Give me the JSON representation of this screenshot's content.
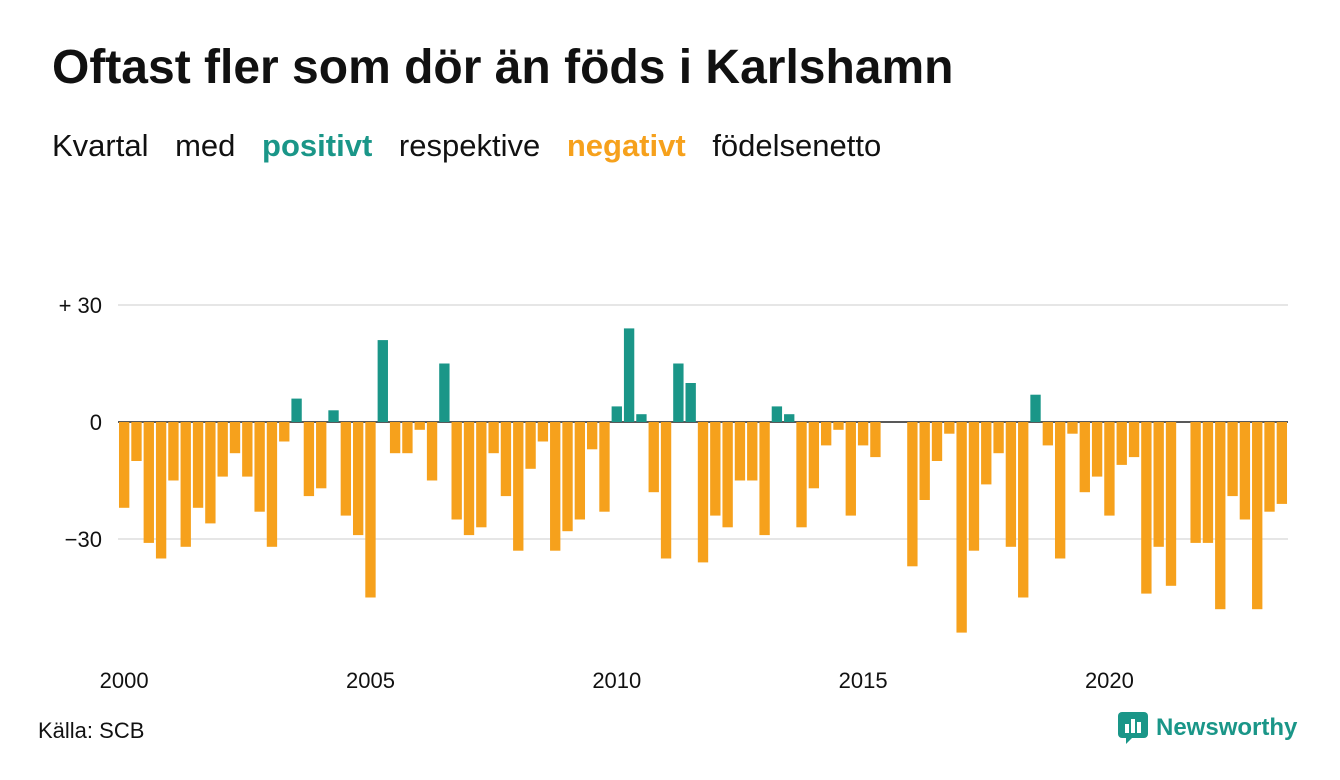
{
  "title": "Oftast fler som dör än föds i Karlshamn",
  "subtitle": {
    "part1": "Kvartal",
    "part2": "med",
    "positive": "positivt",
    "part3": "respektive",
    "negative": "negativt",
    "part4": "födelsenetto"
  },
  "colors": {
    "positive": "#1a9688",
    "negative": "#f6a11c",
    "text": "#111111",
    "grid": "#dddddd"
  },
  "source": "Källa: SCB",
  "brand": {
    "name": "Newsworthy",
    "icon": "newsworthy-logo-icon"
  },
  "chart_data": {
    "type": "bar",
    "xlabel": "",
    "ylabel": "",
    "ylim": [
      -56,
      30
    ],
    "yticks": [
      30,
      0,
      -30
    ],
    "ytick_labels": [
      "+ 30",
      "0",
      "−30"
    ],
    "xtick_labels": [
      "2000",
      "2005",
      "2010",
      "2015",
      "2020"
    ],
    "x_start": "2000 Q1",
    "frequency": "quarter",
    "grid": true,
    "values": [
      -22,
      -10,
      -31,
      -35,
      -15,
      -32,
      -22,
      -26,
      -14,
      -8,
      -14,
      -23,
      -32,
      -5,
      6,
      -19,
      -17,
      3,
      -24,
      -29,
      -45,
      21,
      -8,
      -8,
      -2,
      -15,
      15,
      -25,
      -29,
      -27,
      -8,
      -19,
      -33,
      -12,
      -5,
      -33,
      -28,
      -25,
      -7,
      -23,
      4,
      24,
      2,
      -18,
      -35,
      15,
      10,
      -36,
      -24,
      -27,
      -15,
      -15,
      -29,
      4,
      2,
      -27,
      -17,
      -6,
      -2,
      -24,
      -6,
      -9,
      0,
      0,
      -37,
      -20,
      -10,
      -3,
      -54,
      -33,
      -16,
      -8,
      -32,
      -45,
      7,
      -6,
      -35,
      -3,
      -18,
      -14,
      -24,
      -11,
      -9,
      -44,
      -32,
      -42,
      0,
      -31,
      -31,
      -48,
      -19,
      -25,
      -48,
      -23,
      -21
    ]
  }
}
